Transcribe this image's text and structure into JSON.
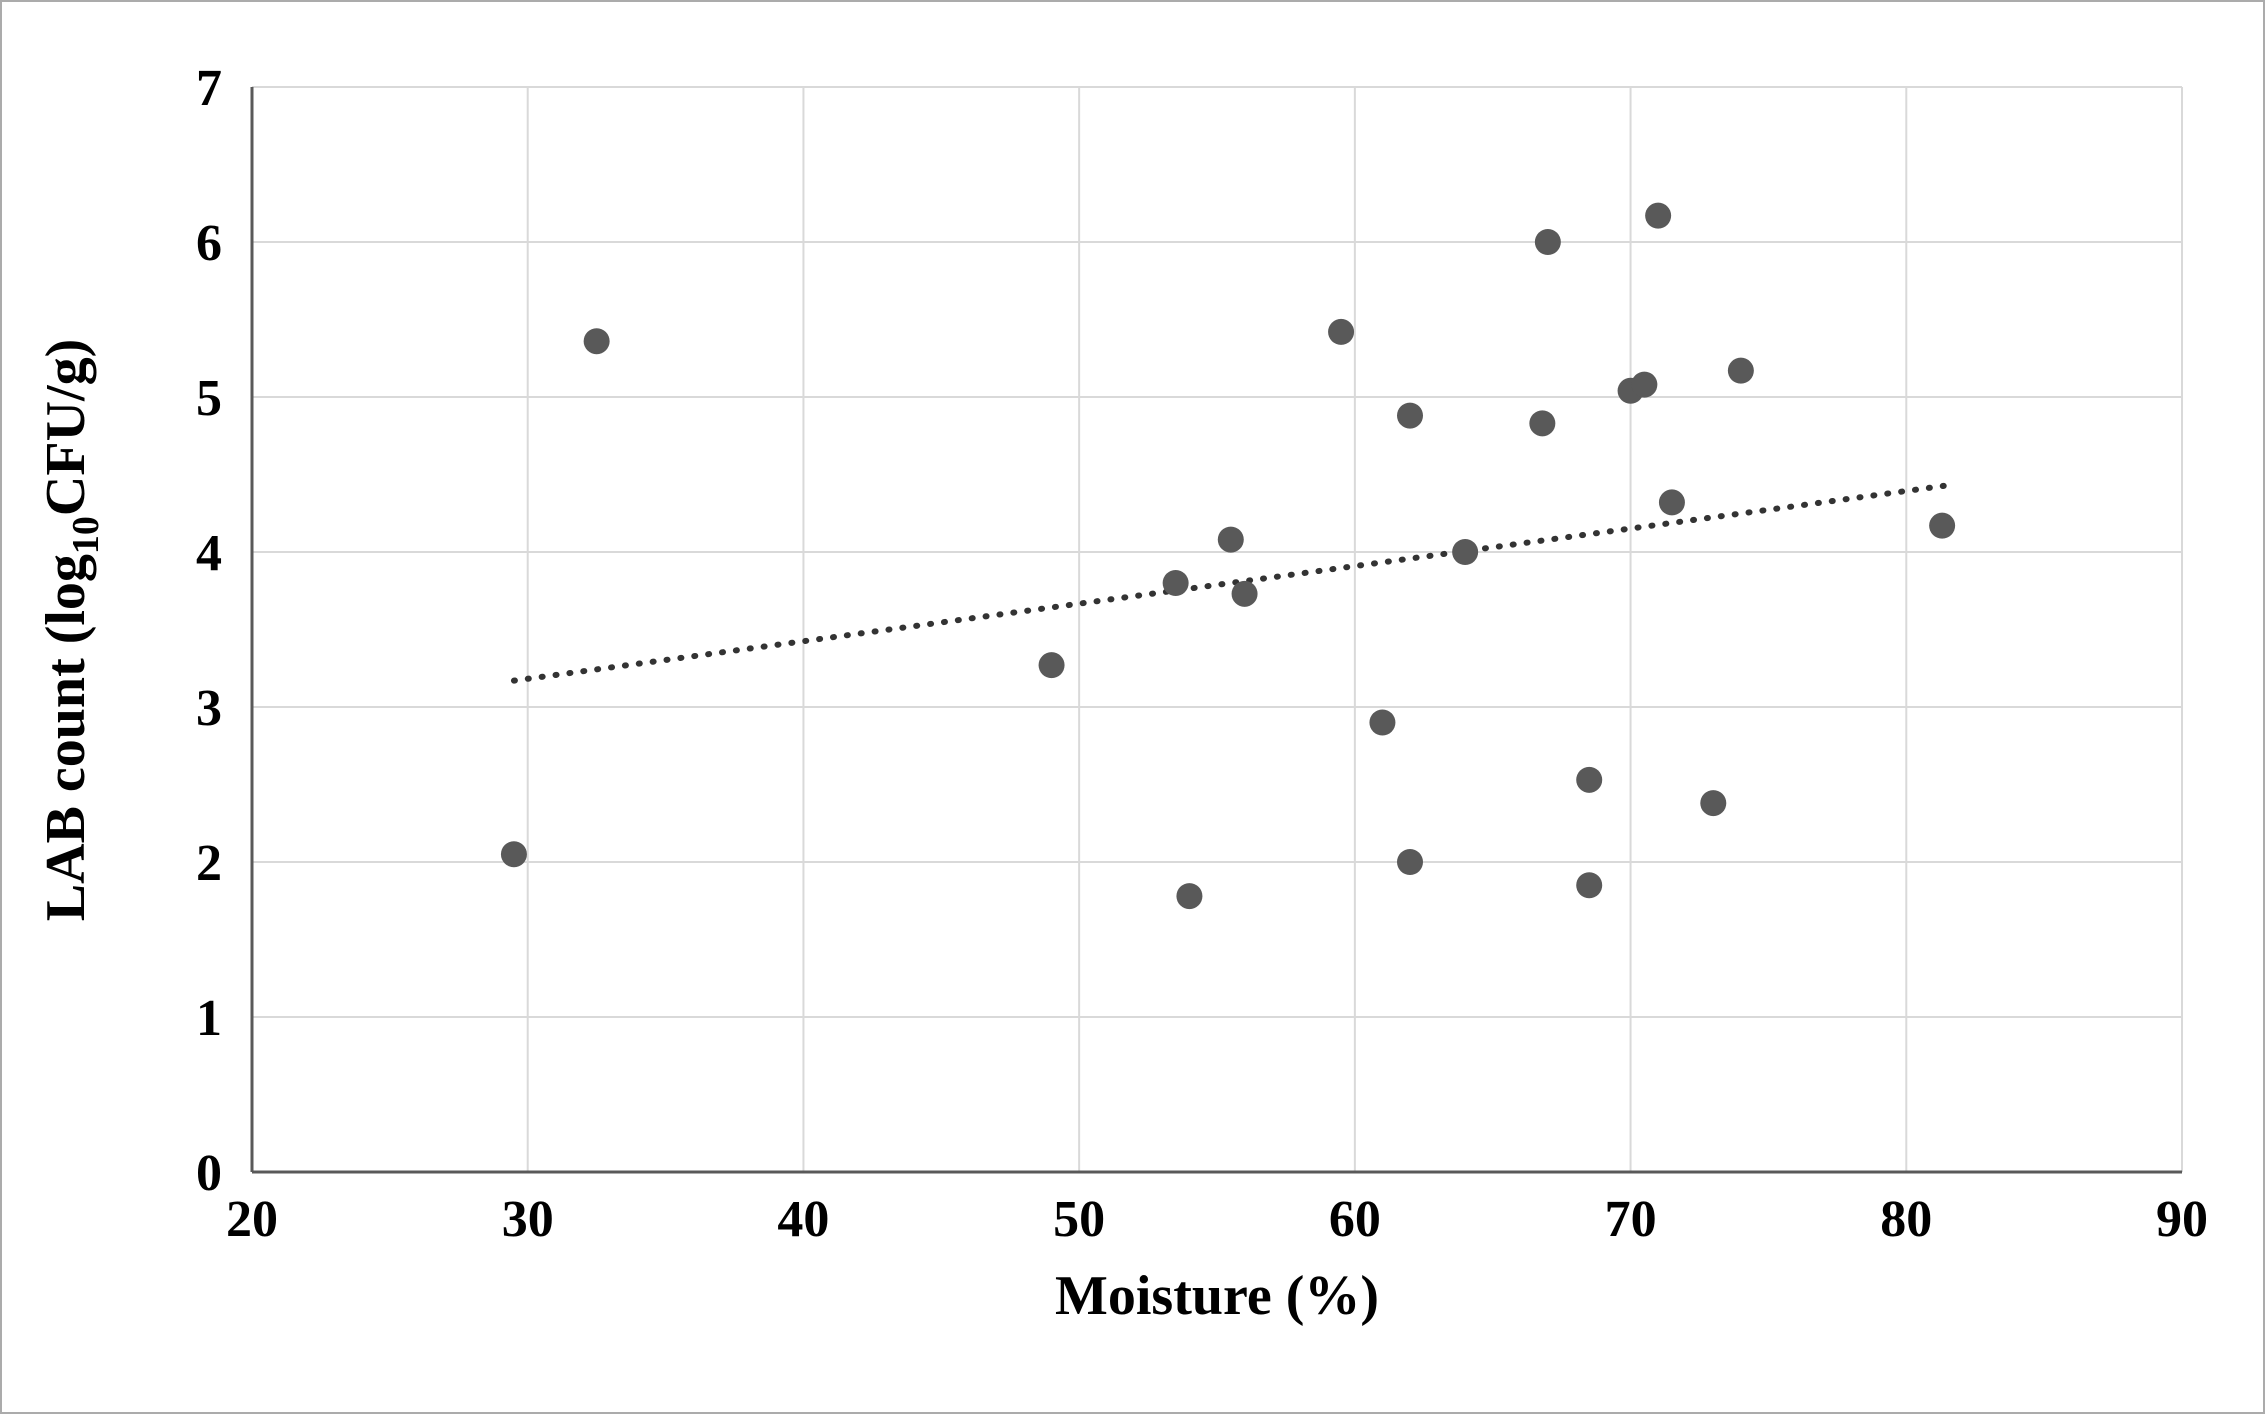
{
  "figure": {
    "description": "Scatter plot of LAB count versus moisture content with dotted linear trendline"
  },
  "chart_data": {
    "type": "scatter",
    "title": "",
    "xlabel": "Moisture (%)",
    "ylabel": "LAB count (log10CFU/g)",
    "ylabel_parts": {
      "pre": "LAB count (log",
      "sub": "10",
      "post": "CFU/g)"
    },
    "xlim": [
      20,
      90
    ],
    "ylim": [
      0,
      7
    ],
    "x_ticks": [
      20,
      30,
      40,
      50,
      60,
      70,
      80,
      90
    ],
    "y_ticks": [
      0,
      1,
      2,
      3,
      4,
      5,
      6,
      7
    ],
    "grid": true,
    "legend": "none",
    "points": [
      [
        29.5,
        2.05
      ],
      [
        32.5,
        5.36
      ],
      [
        49.0,
        3.27
      ],
      [
        53.5,
        3.8
      ],
      [
        54.0,
        1.78
      ],
      [
        55.5,
        4.08
      ],
      [
        56.0,
        3.73
      ],
      [
        59.5,
        5.42
      ],
      [
        61.0,
        2.9
      ],
      [
        62.0,
        4.88
      ],
      [
        62.0,
        2.0
      ],
      [
        64.0,
        4.0
      ],
      [
        66.8,
        4.83
      ],
      [
        67.0,
        6.0
      ],
      [
        68.5,
        2.53
      ],
      [
        68.5,
        1.85
      ],
      [
        70.0,
        5.04
      ],
      [
        70.5,
        5.08
      ],
      [
        71.0,
        6.17
      ],
      [
        71.5,
        4.32
      ],
      [
        73.0,
        2.38
      ],
      [
        74.0,
        5.17
      ],
      [
        81.3,
        4.17
      ]
    ],
    "trendline": {
      "style": "dotted",
      "x1": 29.5,
      "y1": 3.17,
      "x2": 81.5,
      "y2": 4.43
    },
    "colors": {
      "marker": "#595959",
      "trendline": "#333333",
      "grid": "#d9d9d9",
      "axis": "#595959",
      "text": "#000000"
    }
  }
}
